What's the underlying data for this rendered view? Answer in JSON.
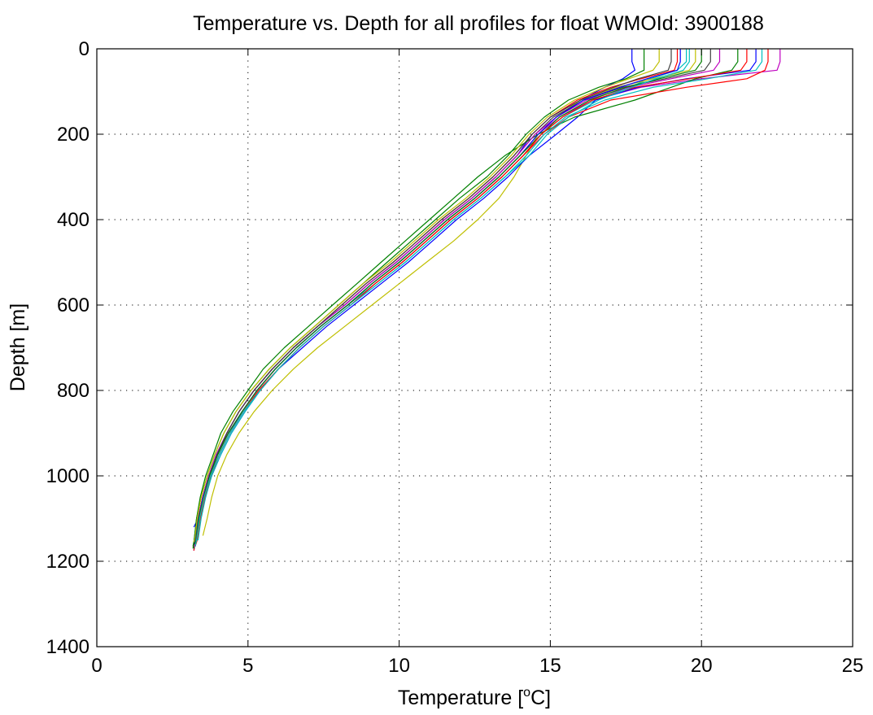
{
  "chart_data": {
    "type": "line",
    "title": "Temperature vs. Depth for all profiles for float WMOId: 3900188",
    "xlabel": "Temperature [",
    "xlabel_sup": "o",
    "xlabel_tail": "C]",
    "ylabel": "Depth [m]",
    "xlim": [
      0,
      25
    ],
    "ylim": [
      0,
      1400
    ],
    "y_reversed": true,
    "grid": true,
    "x_ticks": [
      0,
      5,
      10,
      15,
      20,
      25
    ],
    "y_ticks": [
      0,
      200,
      400,
      600,
      800,
      1000,
      1200,
      1400
    ],
    "x_tick_labels": [
      "0",
      "5",
      "10",
      "15",
      "20",
      "25"
    ],
    "y_tick_labels": [
      "0",
      "200",
      "400",
      "600",
      "800",
      "1000",
      "1200",
      "1400"
    ],
    "depths": [
      0,
      30,
      50,
      70,
      90,
      120,
      160,
      200,
      250,
      300,
      350,
      400,
      450,
      500,
      550,
      600,
      650,
      700,
      750,
      800,
      850,
      900,
      950,
      1000,
      1050,
      1100,
      1150
    ],
    "series": [
      {
        "color": "#0000ff",
        "max_depth": 1175,
        "values": [
          17.7,
          17.7,
          17.8,
          17.4,
          16.8,
          16.0,
          15.0,
          14.4,
          13.9,
          13.2,
          12.4,
          11.5,
          10.7,
          9.9,
          9.0,
          8.2,
          7.3,
          6.5,
          5.8,
          5.2,
          4.7,
          4.3,
          4.0,
          3.7,
          3.5,
          3.35,
          3.25
        ]
      },
      {
        "color": "#008000",
        "max_depth": 1170,
        "values": [
          18.1,
          18.1,
          18.1,
          17.5,
          16.6,
          15.6,
          14.8,
          14.2,
          13.6,
          12.9,
          12.0,
          11.2,
          10.4,
          9.6,
          8.8,
          8.0,
          7.2,
          6.4,
          5.7,
          5.1,
          4.6,
          4.2,
          3.9,
          3.65,
          3.45,
          3.3,
          3.22
        ]
      },
      {
        "color": "#ff0000",
        "max_depth": 1175,
        "values": [
          19.2,
          19.2,
          19.1,
          18.0,
          17.0,
          15.9,
          15.0,
          14.4,
          13.8,
          13.1,
          12.3,
          11.4,
          10.6,
          9.8,
          8.9,
          8.1,
          7.3,
          6.5,
          5.8,
          5.2,
          4.7,
          4.3,
          4.0,
          3.7,
          3.5,
          3.35,
          3.25
        ]
      },
      {
        "color": "#00bfbf",
        "max_depth": 1160,
        "values": [
          19.5,
          19.5,
          19.2,
          18.3,
          17.6,
          16.5,
          15.4,
          14.7,
          14.1,
          13.4,
          12.6,
          11.7,
          10.9,
          10.1,
          9.2,
          8.3,
          7.4,
          6.6,
          5.9,
          5.3,
          4.8,
          4.4,
          4.05,
          3.75,
          3.55,
          3.38,
          3.28
        ]
      },
      {
        "color": "#bf00bf",
        "max_depth": 1165,
        "values": [
          22.6,
          22.6,
          22.5,
          20.0,
          18.0,
          16.4,
          15.3,
          14.6,
          14.0,
          13.3,
          12.5,
          11.6,
          10.8,
          10.0,
          9.1,
          8.3,
          7.4,
          6.6,
          5.9,
          5.3,
          4.8,
          4.4,
          4.05,
          3.75,
          3.55,
          3.4,
          3.3
        ]
      },
      {
        "color": "#bfbf00",
        "max_depth": 1140,
        "values": [
          19.8,
          19.8,
          19.6,
          18.4,
          17.2,
          16.0,
          15.2,
          14.6,
          14.2,
          13.8,
          13.3,
          12.6,
          11.8,
          10.9,
          10.0,
          9.1,
          8.2,
          7.3,
          6.5,
          5.8,
          5.2,
          4.7,
          4.3,
          4.0,
          3.8,
          3.65,
          3.55
        ]
      },
      {
        "color": "#404040",
        "max_depth": 1170,
        "values": [
          20.3,
          20.3,
          20.1,
          18.8,
          17.4,
          16.1,
          15.1,
          14.5,
          13.9,
          13.2,
          12.4,
          11.5,
          10.7,
          9.9,
          9.0,
          8.2,
          7.3,
          6.5,
          5.8,
          5.2,
          4.7,
          4.3,
          3.95,
          3.7,
          3.5,
          3.35,
          3.26
        ]
      },
      {
        "color": "#0000ff",
        "max_depth": 1120,
        "values": [
          21.8,
          21.8,
          21.6,
          19.5,
          17.9,
          16.5,
          15.9,
          15.2,
          14.3,
          13.6,
          12.8,
          11.9,
          11.1,
          10.3,
          9.4,
          8.5,
          7.6,
          6.8,
          6.0,
          5.4,
          4.9,
          4.45,
          4.1,
          3.8,
          3.55,
          3.35,
          3.25
        ]
      },
      {
        "color": "#008000",
        "max_depth": 1165,
        "values": [
          21.2,
          21.2,
          21.0,
          19.8,
          19.0,
          17.8,
          15.8,
          14.6,
          13.5,
          12.6,
          11.8,
          11.0,
          10.2,
          9.4,
          8.6,
          7.8,
          7.0,
          6.2,
          5.5,
          5.0,
          4.5,
          4.1,
          3.85,
          3.6,
          3.42,
          3.3,
          3.22
        ]
      },
      {
        "color": "#ff0000",
        "max_depth": 1160,
        "values": [
          22.2,
          22.2,
          22.1,
          21.5,
          19.5,
          17.0,
          15.6,
          14.8,
          14.1,
          13.4,
          12.6,
          11.7,
          10.9,
          10.1,
          9.2,
          8.4,
          7.5,
          6.7,
          6.0,
          5.4,
          4.85,
          4.4,
          4.05,
          3.78,
          3.58,
          3.42,
          3.32
        ]
      },
      {
        "color": "#00bfbf",
        "max_depth": 1150,
        "values": [
          22.0,
          22.0,
          21.8,
          20.2,
          18.4,
          16.8,
          15.5,
          14.8,
          14.2,
          13.5,
          12.7,
          11.8,
          11.0,
          10.2,
          9.3,
          8.4,
          7.5,
          6.7,
          6.0,
          5.4,
          4.9,
          4.45,
          4.1,
          3.8,
          3.6,
          3.45,
          3.35
        ]
      },
      {
        "color": "#bf00bf",
        "max_depth": 1165,
        "values": [
          20.6,
          20.6,
          20.4,
          19.0,
          17.6,
          16.2,
          15.2,
          14.5,
          13.9,
          13.2,
          12.4,
          11.5,
          10.7,
          9.9,
          9.0,
          8.2,
          7.3,
          6.5,
          5.8,
          5.2,
          4.7,
          4.3,
          3.95,
          3.7,
          3.5,
          3.35,
          3.27
        ]
      },
      {
        "color": "#bfbf00",
        "max_depth": 1155,
        "values": [
          18.6,
          18.6,
          18.4,
          17.6,
          16.8,
          15.8,
          14.9,
          14.3,
          13.7,
          13.0,
          12.2,
          11.3,
          10.5,
          9.7,
          8.8,
          8.0,
          7.2,
          6.4,
          5.7,
          5.1,
          4.6,
          4.2,
          3.9,
          3.65,
          3.45,
          3.32,
          3.24
        ]
      },
      {
        "color": "#404040",
        "max_depth": 1160,
        "values": [
          19.0,
          19.0,
          18.9,
          17.9,
          17.1,
          16.0,
          15.0,
          14.4,
          13.8,
          13.1,
          12.3,
          11.4,
          10.6,
          9.8,
          8.9,
          8.1,
          7.3,
          6.5,
          5.8,
          5.2,
          4.7,
          4.3,
          3.98,
          3.72,
          3.52,
          3.37,
          3.28
        ]
      },
      {
        "color": "#0000ff",
        "max_depth": 1160,
        "values": [
          19.3,
          19.3,
          19.2,
          18.2,
          17.3,
          16.1,
          15.2,
          14.6,
          14.0,
          13.3,
          12.5,
          11.6,
          10.8,
          10.0,
          9.1,
          8.3,
          7.4,
          6.6,
          5.9,
          5.3,
          4.8,
          4.35,
          4.0,
          3.73,
          3.52,
          3.36,
          3.27
        ]
      },
      {
        "color": "#008000",
        "max_depth": 1160,
        "values": [
          20.0,
          20.0,
          19.8,
          18.6,
          17.5,
          16.3,
          15.3,
          14.7,
          14.0,
          13.3,
          12.5,
          11.6,
          10.8,
          10.0,
          9.1,
          8.3,
          7.4,
          6.6,
          5.9,
          5.3,
          4.8,
          4.35,
          4.0,
          3.73,
          3.53,
          3.37,
          3.28
        ]
      },
      {
        "color": "#ff0000",
        "max_depth": 1165,
        "values": [
          21.5,
          21.5,
          21.3,
          19.6,
          17.8,
          16.4,
          15.4,
          14.7,
          14.1,
          13.4,
          12.6,
          11.7,
          10.9,
          10.1,
          9.2,
          8.4,
          7.5,
          6.7,
          6.0,
          5.35,
          4.85,
          4.4,
          4.05,
          3.76,
          3.55,
          3.4,
          3.3
        ]
      },
      {
        "color": "#00bfbf",
        "max_depth": 1165,
        "values": [
          19.6,
          19.6,
          19.4,
          18.5,
          17.7,
          16.6,
          15.6,
          14.9,
          14.3,
          13.5,
          12.7,
          11.8,
          11.0,
          10.2,
          9.3,
          8.4,
          7.5,
          6.7,
          6.0,
          5.4,
          4.85,
          4.4,
          4.05,
          3.76,
          3.55,
          3.4,
          3.3
        ]
      }
    ]
  }
}
